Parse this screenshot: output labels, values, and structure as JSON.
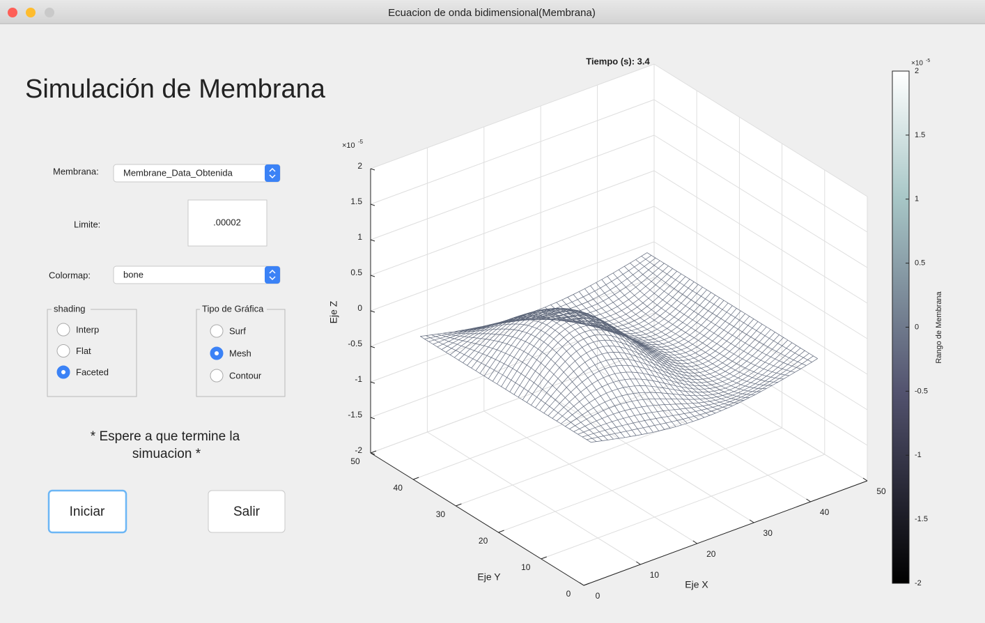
{
  "window": {
    "title": "Ecuacion de onda bidimensional(Membrana)"
  },
  "panel": {
    "heading": "Simulación de Membrana",
    "membrana_label": "Membrana:",
    "membrana_value": "Membrane_Data_Obtenida",
    "limite_label": "Limite:",
    "limite_value": ".00002",
    "colormap_label": "Colormap:",
    "colormap_value": "bone",
    "shading": {
      "title": "shading",
      "options": [
        "Interp",
        "Flat",
        "Faceted"
      ],
      "selected": 2
    },
    "tipo": {
      "title": "Tipo de Gráfica",
      "options": [
        "Surf",
        "Mesh",
        "Contour"
      ],
      "selected": 1
    },
    "warning": [
      "* Espere a que termine la",
      "simuacion *"
    ],
    "buttons": [
      "Iniciar",
      "Salir"
    ]
  },
  "chart_data": {
    "type": "mesh3d",
    "title": "Tiempo (s): 3.4",
    "xlabel": "Eje X",
    "ylabel": "Eje Y",
    "zlabel": "Eje Z",
    "z_exponent": "×10",
    "z_exponent_power": "-5",
    "xlim": [
      0,
      50
    ],
    "xticks": [
      0,
      10,
      20,
      30,
      40,
      50
    ],
    "ylim": [
      0,
      50
    ],
    "yticks": [
      0,
      10,
      20,
      30,
      40,
      50
    ],
    "zlim": [
      -2,
      2
    ],
    "zticks": [
      -2,
      -1.5,
      -1,
      -0.5,
      0,
      0.5,
      1,
      1.5,
      2
    ],
    "grid": true,
    "colorbar": {
      "label": "Rango de Membrana",
      "colormap": "bone",
      "exponent": "×10",
      "exponent_power": "-5",
      "lim": [
        -2,
        2
      ],
      "ticks": [
        -2,
        -1.5,
        -1,
        -0.5,
        0,
        0.5,
        1,
        1.5,
        2
      ]
    }
  }
}
